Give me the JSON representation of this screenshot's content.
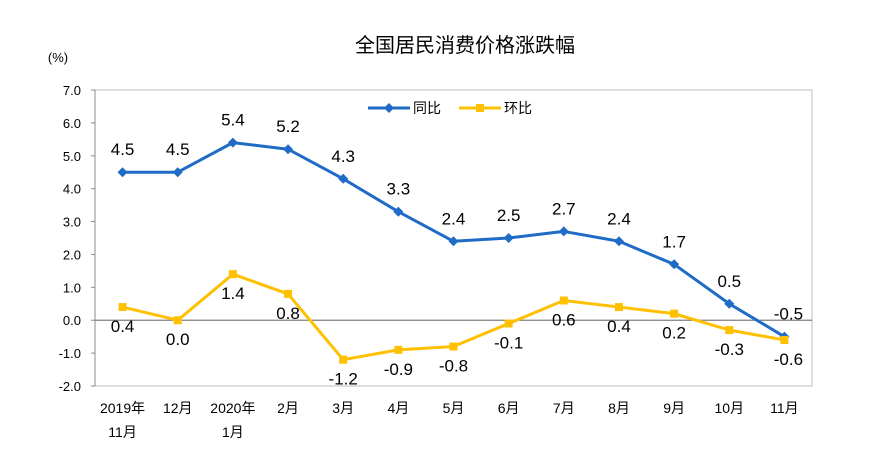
{
  "chart_data": {
    "type": "line",
    "title": "全国居民消费价格涨跌幅",
    "ylabel": "(%)",
    "xlabel": "",
    "ylim": [
      -2,
      7
    ],
    "yticks": [
      7,
      6,
      5,
      4,
      3,
      2,
      1,
      0,
      -1,
      -2
    ],
    "grid": false,
    "legend_position": "top-center",
    "categories": [
      "2019年\n11月",
      "12月",
      "2020年\n1月",
      "2月",
      "3月",
      "4月",
      "5月",
      "6月",
      "7月",
      "8月",
      "9月",
      "10月",
      "11月"
    ],
    "series": [
      {
        "name": "同比",
        "color": "#1F6BC6",
        "marker": "diamond",
        "values": [
          4.5,
          4.5,
          5.4,
          5.2,
          4.3,
          3.3,
          2.4,
          2.5,
          2.7,
          2.4,
          1.7,
          0.5,
          -0.5
        ]
      },
      {
        "name": "环比",
        "color": "#FFC000",
        "marker": "square",
        "values": [
          0.4,
          0.0,
          1.4,
          0.8,
          -1.2,
          -0.9,
          -0.8,
          -0.1,
          0.6,
          0.4,
          0.2,
          -0.3,
          -0.6
        ]
      }
    ]
  }
}
